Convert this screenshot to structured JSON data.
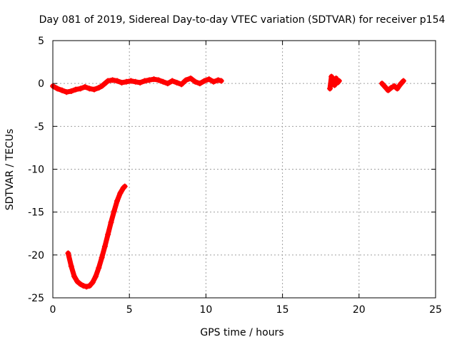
{
  "chart_data": {
    "type": "scatter",
    "title": "Day 081 of 2019, Sidereal Day-to-day VTEC variation (SDTVAR) for receiver p154",
    "xlabel": "GPS time / hours",
    "ylabel": "SDTVAR / TECUs",
    "xlim": [
      0,
      25
    ],
    "ylim": [
      -25,
      5
    ],
    "xticks": [
      0,
      5,
      10,
      15,
      20,
      25
    ],
    "yticks": [
      -25,
      -20,
      -15,
      -10,
      -5,
      0,
      5
    ],
    "xtick_labels": [
      "0",
      "5",
      "10",
      "15",
      "20",
      "25"
    ],
    "ytick_labels": [
      "-25",
      "-20",
      "-15",
      "-10",
      "-5",
      "0",
      "5"
    ],
    "grid": true,
    "marker_color": "#ff0000",
    "series": [
      {
        "name": "segment-1",
        "x": [
          0.0,
          0.3,
          0.6,
          0.9,
          1.2,
          1.5,
          1.8,
          2.1,
          2.4,
          2.7,
          3.0,
          3.2,
          3.4,
          3.6,
          3.9,
          4.2,
          4.5,
          4.8,
          5.1,
          5.4,
          5.7,
          6.0,
          6.3,
          6.6,
          6.9,
          7.2,
          7.5,
          7.8,
          8.1,
          8.4,
          8.7,
          9.0,
          9.3,
          9.6,
          9.9,
          10.2,
          10.5,
          10.8,
          11.0
        ],
        "y": [
          -0.3,
          -0.6,
          -0.8,
          -1.0,
          -0.9,
          -0.7,
          -0.6,
          -0.4,
          -0.6,
          -0.7,
          -0.5,
          -0.3,
          0.0,
          0.3,
          0.4,
          0.3,
          0.1,
          0.2,
          0.3,
          0.2,
          0.1,
          0.3,
          0.4,
          0.5,
          0.4,
          0.2,
          0.0,
          0.3,
          0.1,
          -0.1,
          0.4,
          0.6,
          0.2,
          0.0,
          0.3,
          0.5,
          0.2,
          0.4,
          0.3
        ]
      },
      {
        "name": "segment-2",
        "x": [
          1.0,
          1.2,
          1.4,
          1.6,
          1.8,
          2.0,
          2.2,
          2.4,
          2.6,
          2.8,
          3.0,
          3.2,
          3.4,
          3.6,
          3.8,
          4.0,
          4.2,
          4.4,
          4.6,
          4.7
        ],
        "y": [
          -19.8,
          -21.3,
          -22.5,
          -23.1,
          -23.4,
          -23.6,
          -23.7,
          -23.6,
          -23.2,
          -22.5,
          -21.5,
          -20.3,
          -19.0,
          -17.6,
          -16.2,
          -14.9,
          -13.7,
          -12.8,
          -12.2,
          -12.0
        ]
      },
      {
        "name": "segment-3",
        "x": [
          18.1,
          18.2,
          18.3,
          18.4,
          18.5,
          18.6,
          18.7
        ],
        "y": [
          -0.6,
          0.8,
          0.2,
          -0.2,
          0.6,
          0.1,
          0.3
        ]
      },
      {
        "name": "segment-4",
        "x": [
          21.5,
          21.7,
          21.9,
          22.1,
          22.3,
          22.5,
          22.7,
          22.9
        ],
        "y": [
          0.0,
          -0.4,
          -0.8,
          -0.5,
          -0.3,
          -0.6,
          -0.1,
          0.3
        ]
      }
    ]
  }
}
